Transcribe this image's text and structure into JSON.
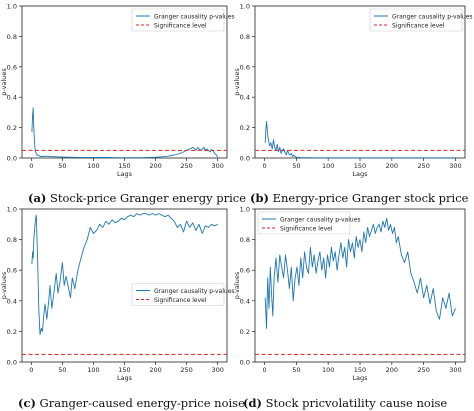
{
  "chart_data": [
    {
      "id": "a",
      "type": "line",
      "caption_label": "(a)",
      "caption_text": "Stock-price Granger energy price",
      "xlabel": "Lags",
      "ylabel": "p-values",
      "xlim": [
        -15,
        315
      ],
      "ylim": [
        0,
        1.0
      ],
      "xticks": [
        0,
        50,
        100,
        150,
        200,
        250,
        300
      ],
      "yticks": [
        0.0,
        0.2,
        0.4,
        0.6,
        0.8,
        1.0
      ],
      "legend_position": "upper right",
      "significance_level": 0.05,
      "series": [
        {
          "name": "Granger causality p-values",
          "color": "#1f77b4",
          "x": [
            1,
            2,
            3,
            4,
            5,
            6,
            7,
            8,
            9,
            10,
            12,
            15,
            20,
            25,
            30,
            40,
            60,
            80,
            100,
            120,
            140,
            160,
            180,
            200,
            210,
            220,
            230,
            240,
            245,
            250,
            255,
            258,
            260,
            263,
            265,
            268,
            270,
            273,
            275,
            278,
            280,
            283,
            285,
            288,
            290,
            293,
            295,
            298,
            300
          ],
          "y": [
            0.17,
            0.28,
            0.33,
            0.2,
            0.12,
            0.06,
            0.04,
            0.03,
            0.02,
            0.02,
            0.015,
            0.01,
            0.01,
            0.012,
            0.01,
            0.008,
            0.005,
            0.004,
            0.003,
            0.003,
            0.002,
            0.002,
            0.002,
            0.005,
            0.008,
            0.012,
            0.02,
            0.03,
            0.04,
            0.05,
            0.06,
            0.065,
            0.07,
            0.06,
            0.05,
            0.07,
            0.06,
            0.05,
            0.06,
            0.07,
            0.05,
            0.06,
            0.05,
            0.04,
            0.055,
            0.045,
            0.03,
            0.02,
            0.005
          ]
        },
        {
          "name": "Significance level",
          "color": "#d62728",
          "style": "dashed",
          "x": [
            -15,
            315
          ],
          "y": [
            0.05,
            0.05
          ]
        }
      ]
    },
    {
      "id": "b",
      "type": "line",
      "caption_label": "(b)",
      "caption_text": "Energy-price Granger stock price",
      "xlabel": "Lags",
      "ylabel": "p-values",
      "xlim": [
        -15,
        315
      ],
      "ylim": [
        0,
        1.0
      ],
      "xticks": [
        0,
        50,
        100,
        150,
        200,
        250,
        300
      ],
      "yticks": [
        0.0,
        0.2,
        0.4,
        0.6,
        0.8,
        1.0
      ],
      "legend_position": "upper right",
      "significance_level": 0.05,
      "series": [
        {
          "name": "Granger causality p-values",
          "color": "#1f77b4",
          "x": [
            1,
            2,
            3,
            4,
            5,
            6,
            8,
            10,
            12,
            14,
            16,
            18,
            20,
            22,
            24,
            26,
            28,
            30,
            32,
            34,
            36,
            38,
            40,
            42,
            44,
            46,
            48,
            50,
            55,
            60,
            70,
            80,
            90,
            100,
            110,
            120,
            140,
            160,
            180,
            200,
            220,
            240,
            260,
            280,
            300
          ],
          "y": [
            0.1,
            0.18,
            0.24,
            0.2,
            0.15,
            0.12,
            0.08,
            0.1,
            0.06,
            0.12,
            0.07,
            0.05,
            0.09,
            0.04,
            0.07,
            0.03,
            0.05,
            0.06,
            0.04,
            0.02,
            0.05,
            0.03,
            0.02,
            0.03,
            0.01,
            0.02,
            0.01,
            0.005,
            0.003,
            0.002,
            0.002,
            0.001,
            0.001,
            0.001,
            0.001,
            0.001,
            0.001,
            0.001,
            0.001,
            0.001,
            0.001,
            0.001,
            0.001,
            0.001,
            0.001
          ]
        },
        {
          "name": "Significance level",
          "color": "#d62728",
          "style": "dashed",
          "x": [
            -15,
            315
          ],
          "y": [
            0.05,
            0.05
          ]
        }
      ]
    },
    {
      "id": "c",
      "type": "line",
      "caption_label": "(c)",
      "caption_text": "Granger-caused energy-price noise",
      "xlabel": "Lags",
      "ylabel": "p-values",
      "xlim": [
        -15,
        315
      ],
      "ylim": [
        0,
        1.0
      ],
      "xticks": [
        0,
        50,
        100,
        150,
        200,
        250,
        300
      ],
      "yticks": [
        0.0,
        0.2,
        0.4,
        0.6,
        0.8,
        1.0
      ],
      "legend_position": "center right",
      "significance_level": 0.05,
      "series": [
        {
          "name": "Granger causality p-values",
          "color": "#1f77b4",
          "x": [
            1,
            2,
            3,
            4,
            5,
            6,
            7,
            8,
            10,
            12,
            14,
            16,
            18,
            20,
            22,
            25,
            28,
            30,
            33,
            36,
            40,
            43,
            46,
            50,
            53,
            56,
            60,
            63,
            66,
            70,
            75,
            80,
            85,
            90,
            95,
            100,
            105,
            110,
            115,
            120,
            125,
            130,
            135,
            140,
            145,
            150,
            155,
            160,
            165,
            170,
            175,
            180,
            185,
            190,
            195,
            200,
            205,
            210,
            215,
            220,
            225,
            230,
            235,
            240,
            245,
            250,
            255,
            260,
            265,
            270,
            275,
            280,
            285,
            290,
            295,
            300
          ],
          "y": [
            0.64,
            0.72,
            0.68,
            0.8,
            0.85,
            0.9,
            0.94,
            0.96,
            0.7,
            0.35,
            0.18,
            0.22,
            0.2,
            0.3,
            0.38,
            0.28,
            0.4,
            0.5,
            0.35,
            0.44,
            0.58,
            0.45,
            0.52,
            0.65,
            0.5,
            0.56,
            0.48,
            0.42,
            0.55,
            0.48,
            0.6,
            0.68,
            0.75,
            0.8,
            0.88,
            0.84,
            0.86,
            0.9,
            0.88,
            0.92,
            0.9,
            0.93,
            0.91,
            0.92,
            0.94,
            0.93,
            0.95,
            0.96,
            0.95,
            0.97,
            0.96,
            0.97,
            0.97,
            0.96,
            0.97,
            0.96,
            0.97,
            0.96,
            0.95,
            0.96,
            0.94,
            0.92,
            0.88,
            0.9,
            0.85,
            0.92,
            0.88,
            0.91,
            0.86,
            0.9,
            0.84,
            0.89,
            0.88,
            0.9,
            0.89,
            0.9
          ]
        },
        {
          "name": "Significance level",
          "color": "#d62728",
          "style": "dashed",
          "x": [
            -15,
            315
          ],
          "y": [
            0.05,
            0.05
          ]
        }
      ]
    },
    {
      "id": "d",
      "type": "line",
      "caption_label": "(d)",
      "caption_text": "Stock pricvolatility cause noise",
      "xlabel": "Lags",
      "ylabel": "p-values",
      "xlim": [
        -15,
        315
      ],
      "ylim": [
        0,
        1.0
      ],
      "xticks": [
        0,
        50,
        100,
        150,
        200,
        250,
        300
      ],
      "yticks": [
        0.0,
        0.2,
        0.4,
        0.6,
        0.8,
        1.0
      ],
      "legend_position": "upper left",
      "significance_level": 0.05,
      "series": [
        {
          "name": "Granger causality p-values",
          "color": "#1f77b4",
          "x": [
            1,
            3,
            5,
            7,
            9,
            11,
            13,
            15,
            18,
            21,
            24,
            27,
            30,
            33,
            36,
            39,
            42,
            45,
            48,
            51,
            54,
            57,
            60,
            63,
            66,
            69,
            72,
            75,
            78,
            81,
            84,
            87,
            90,
            93,
            96,
            99,
            102,
            105,
            108,
            111,
            114,
            117,
            120,
            123,
            126,
            129,
            132,
            135,
            138,
            141,
            144,
            147,
            150,
            153,
            156,
            159,
            162,
            165,
            168,
            171,
            174,
            177,
            180,
            183,
            186,
            189,
            192,
            195,
            198,
            201,
            204,
            207,
            210,
            215,
            220,
            225,
            230,
            235,
            240,
            245,
            250,
            255,
            260,
            265,
            270,
            275,
            280,
            285,
            290,
            295,
            300
          ],
          "y": [
            0.42,
            0.22,
            0.55,
            0.35,
            0.62,
            0.45,
            0.3,
            0.55,
            0.68,
            0.52,
            0.7,
            0.62,
            0.55,
            0.7,
            0.6,
            0.48,
            0.62,
            0.4,
            0.55,
            0.62,
            0.5,
            0.68,
            0.55,
            0.72,
            0.62,
            0.58,
            0.75,
            0.62,
            0.7,
            0.58,
            0.66,
            0.72,
            0.6,
            0.68,
            0.55,
            0.7,
            0.62,
            0.75,
            0.66,
            0.72,
            0.6,
            0.7,
            0.78,
            0.68,
            0.75,
            0.62,
            0.8,
            0.72,
            0.78,
            0.68,
            0.82,
            0.75,
            0.8,
            0.72,
            0.85,
            0.78,
            0.88,
            0.82,
            0.86,
            0.9,
            0.84,
            0.88,
            0.9,
            0.85,
            0.92,
            0.88,
            0.94,
            0.86,
            0.9,
            0.84,
            0.88,
            0.78,
            0.82,
            0.7,
            0.65,
            0.72,
            0.58,
            0.52,
            0.45,
            0.55,
            0.42,
            0.5,
            0.38,
            0.48,
            0.33,
            0.28,
            0.42,
            0.35,
            0.45,
            0.3,
            0.35
          ]
        },
        {
          "name": "Significance level",
          "color": "#d62728",
          "style": "dashed",
          "x": [
            -15,
            315
          ],
          "y": [
            0.05,
            0.05
          ]
        }
      ]
    }
  ]
}
